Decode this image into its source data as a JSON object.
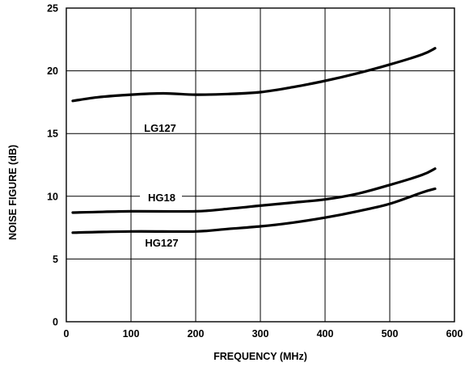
{
  "chart_data": {
    "type": "line",
    "title": "",
    "xlabel": "FREQUENCY (MHz)",
    "ylabel": "NOISE FIGURE (dB)",
    "xlim": [
      0,
      600
    ],
    "ylim": [
      0,
      25
    ],
    "x_ticks": [
      "0",
      "100",
      "200",
      "300",
      "400",
      "500",
      "600"
    ],
    "y_ticks": [
      "0",
      "5",
      "10",
      "15",
      "20",
      "25"
    ],
    "grid": true,
    "colors": {
      "line": "#000000",
      "grid": "#000000",
      "background": "#ffffff"
    },
    "series": [
      {
        "name": "LG127",
        "x": [
          10,
          50,
          100,
          150,
          200,
          250,
          300,
          350,
          400,
          450,
          500,
          550,
          570
        ],
        "y": [
          17.6,
          17.9,
          18.1,
          18.2,
          18.1,
          18.15,
          18.3,
          18.7,
          19.2,
          19.8,
          20.5,
          21.3,
          21.8
        ]
      },
      {
        "name": "HG18",
        "x": [
          10,
          100,
          200,
          250,
          300,
          350,
          400,
          450,
          500,
          550,
          570
        ],
        "y": [
          8.7,
          8.8,
          8.8,
          9.0,
          9.25,
          9.5,
          9.75,
          10.2,
          10.9,
          11.7,
          12.2
        ]
      },
      {
        "name": "HG127",
        "x": [
          10,
          100,
          200,
          250,
          300,
          350,
          400,
          450,
          500,
          550,
          570
        ],
        "y": [
          7.1,
          7.2,
          7.2,
          7.4,
          7.6,
          7.9,
          8.3,
          8.8,
          9.4,
          10.3,
          10.6
        ]
      }
    ]
  }
}
